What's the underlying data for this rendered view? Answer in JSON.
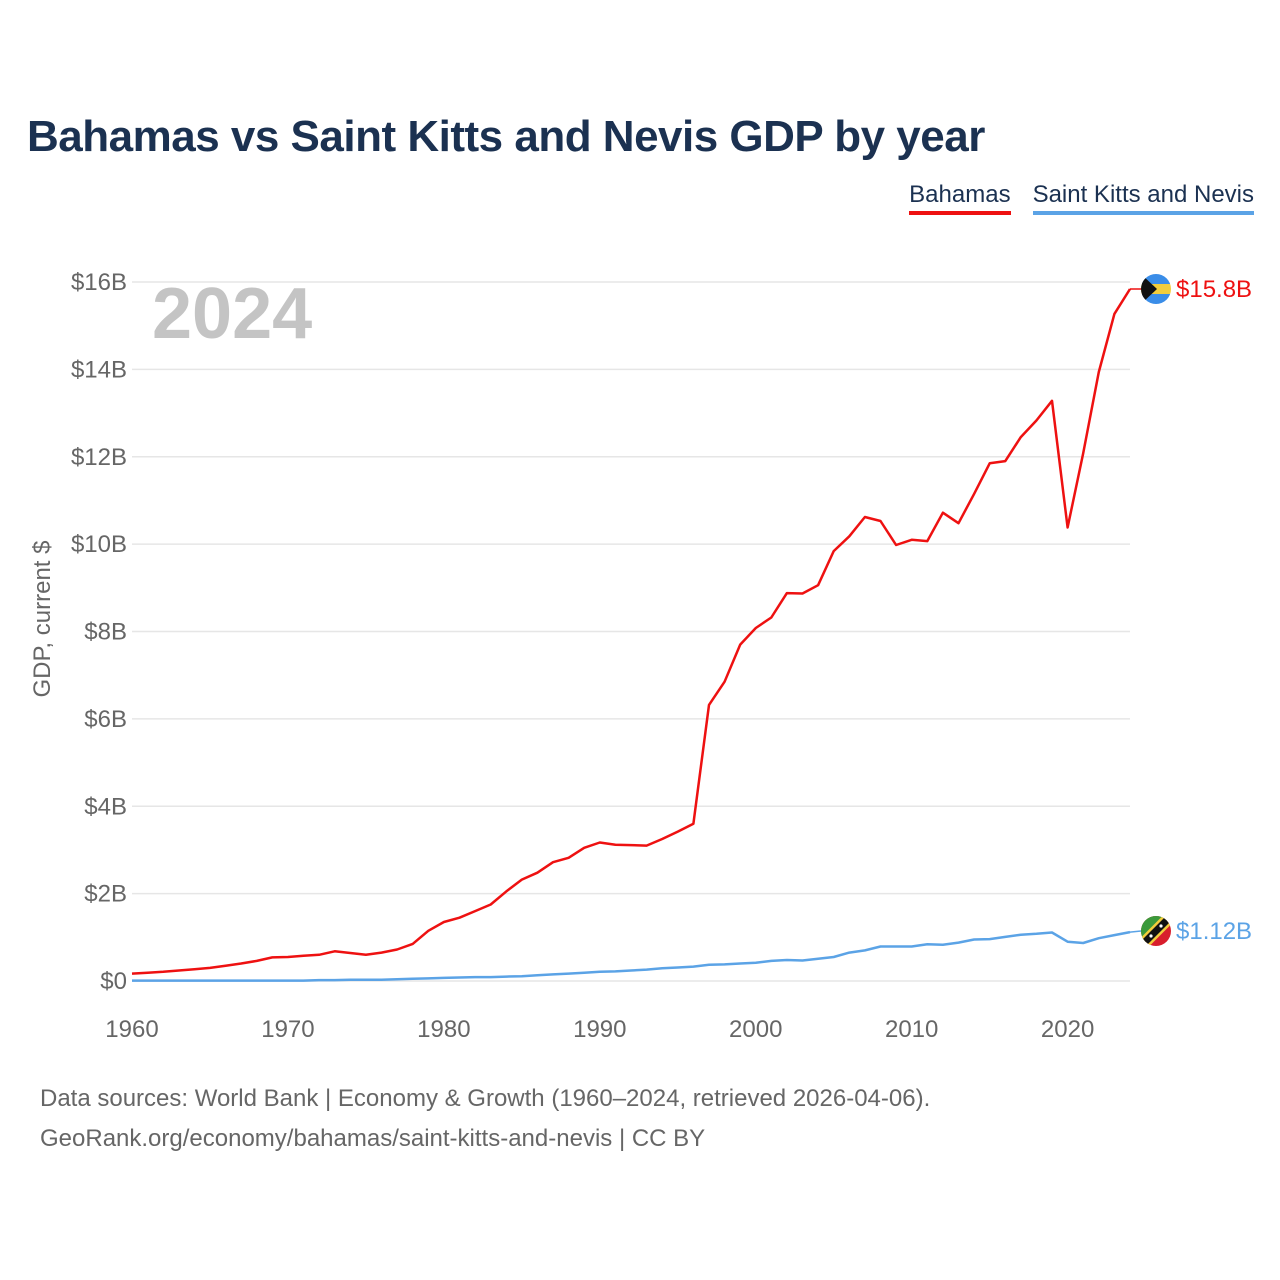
{
  "title": "Bahamas vs Saint Kitts and Nevis GDP by year",
  "legend": [
    {
      "label": "Bahamas",
      "color": "#ee1111"
    },
    {
      "label": "Saint Kitts and Nevis",
      "color": "#5ba3e6"
    }
  ],
  "footer": {
    "sources": "Data sources: World Bank | Economy & Growth (1960–2024, retrieved 2026-04-06).",
    "url": "GeoRank.org/economy/bahamas/saint-kitts-and-nevis | CC BY"
  },
  "chart_data": {
    "type": "line",
    "title": "Bahamas vs Saint Kitts and Nevis GDP by year",
    "xlabel": "",
    "ylabel": "GDP, current $",
    "year_label": "2024",
    "xlim": [
      1960,
      2024
    ],
    "ylim": [
      0,
      16
    ],
    "y_unit": "billion US$",
    "x_ticks": [
      1960,
      1970,
      1980,
      1990,
      2000,
      2010,
      2020
    ],
    "x_tick_labels": [
      "1960",
      "1970",
      "1980",
      "1990",
      "2000",
      "2010",
      "2020"
    ],
    "y_ticks": [
      0,
      2,
      4,
      6,
      8,
      10,
      12,
      14,
      16
    ],
    "y_tick_labels": [
      "$0",
      "$2B",
      "$4B",
      "$6B",
      "$8B",
      "$10B",
      "$12B",
      "$14B",
      "$16B"
    ],
    "grid": true,
    "x": [
      1960,
      1961,
      1962,
      1963,
      1964,
      1965,
      1966,
      1967,
      1968,
      1969,
      1970,
      1971,
      1972,
      1973,
      1974,
      1975,
      1976,
      1977,
      1978,
      1979,
      1980,
      1981,
      1982,
      1983,
      1984,
      1985,
      1986,
      1987,
      1988,
      1989,
      1990,
      1991,
      1992,
      1993,
      1994,
      1995,
      1996,
      1997,
      1998,
      1999,
      2000,
      2001,
      2002,
      2003,
      2004,
      2005,
      2006,
      2007,
      2008,
      2009,
      2010,
      2011,
      2012,
      2013,
      2014,
      2015,
      2016,
      2017,
      2018,
      2019,
      2020,
      2021,
      2022,
      2023,
      2024
    ],
    "series": [
      {
        "name": "Bahamas",
        "color": "#ee1111",
        "end_label": "$15.8B",
        "values": [
          0.17,
          0.19,
          0.21,
          0.24,
          0.27,
          0.3,
          0.35,
          0.4,
          0.46,
          0.54,
          0.55,
          0.58,
          0.6,
          0.68,
          0.64,
          0.6,
          0.65,
          0.72,
          0.85,
          1.15,
          1.35,
          1.45,
          1.6,
          1.75,
          2.05,
          2.32,
          2.48,
          2.72,
          2.82,
          3.05,
          3.17,
          3.12,
          3.11,
          3.1,
          3.25,
          3.42,
          3.6,
          6.32,
          6.85,
          7.7,
          8.08,
          8.32,
          8.88,
          8.87,
          9.06,
          9.84,
          10.18,
          10.62,
          10.53,
          9.98,
          10.1,
          10.07,
          10.72,
          10.48,
          11.15,
          11.85,
          11.9,
          12.45,
          12.83,
          13.28,
          10.38,
          12.08,
          13.94,
          15.27,
          15.84
        ]
      },
      {
        "name": "Saint Kitts and Nevis",
        "color": "#5ba3e6",
        "end_label": "$1.12B",
        "values": [
          0.01,
          0.01,
          0.01,
          0.01,
          0.01,
          0.01,
          0.01,
          0.01,
          0.01,
          0.01,
          0.01,
          0.01,
          0.02,
          0.02,
          0.03,
          0.03,
          0.03,
          0.04,
          0.05,
          0.06,
          0.07,
          0.08,
          0.09,
          0.09,
          0.1,
          0.11,
          0.13,
          0.15,
          0.17,
          0.19,
          0.21,
          0.22,
          0.24,
          0.26,
          0.29,
          0.31,
          0.33,
          0.37,
          0.38,
          0.4,
          0.42,
          0.46,
          0.48,
          0.47,
          0.51,
          0.55,
          0.65,
          0.7,
          0.79,
          0.79,
          0.79,
          0.84,
          0.83,
          0.88,
          0.95,
          0.96,
          1.01,
          1.06,
          1.08,
          1.11,
          0.9,
          0.87,
          0.98,
          1.05,
          1.12
        ]
      }
    ]
  }
}
